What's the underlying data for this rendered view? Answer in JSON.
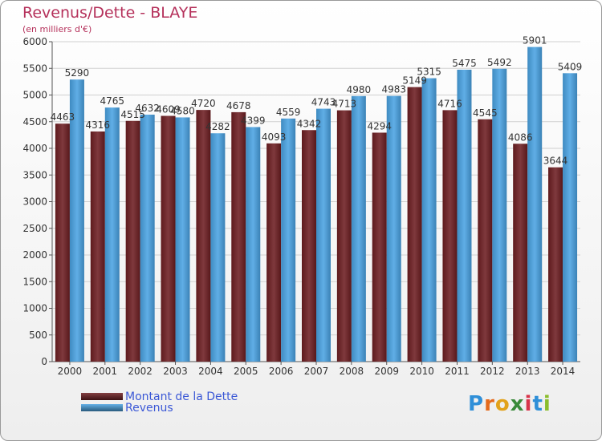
{
  "title": "Revenus/Dette - BLAYE",
  "subtitle": "(en milliers d'€)",
  "brand": {
    "text": "Proxiti",
    "letters": [
      "P",
      "r",
      "o",
      "x",
      "i",
      "t",
      "i"
    ],
    "colors": [
      "#2f8fd8",
      "#e46a1c",
      "#e2a21b",
      "#3a8a3a",
      "#d8344a",
      "#2f8fd8",
      "#8bbd2c"
    ]
  },
  "legend": [
    {
      "label": "Montant de la Dette",
      "color": "#6e1e22"
    },
    {
      "label": "Revenus",
      "color": "#4aa3e3"
    }
  ],
  "chart_data": {
    "type": "bar",
    "title": "Revenus/Dette - BLAYE",
    "subtitle": "(en milliers d'€)",
    "categories": [
      "2000",
      "2001",
      "2002",
      "2003",
      "2004",
      "2005",
      "2006",
      "2007",
      "2008",
      "2009",
      "2010",
      "2011",
      "2012",
      "2013",
      "2014"
    ],
    "series": [
      {
        "name": "Montant de la Dette",
        "color": "#6e1e22",
        "values": [
          4463,
          4316,
          4515,
          4609,
          4720,
          4678,
          4093,
          4342,
          4713,
          4294,
          5149,
          4716,
          4545,
          4086,
          3644
        ]
      },
      {
        "name": "Revenus",
        "color": "#4aa3e3",
        "values": [
          5290,
          4765,
          4632,
          4580,
          4282,
          4399,
          4559,
          4743,
          4980,
          4983,
          5315,
          5475,
          5492,
          5901,
          5409
        ]
      }
    ],
    "yticks": [
      "0",
      "500",
      "1000",
      "1500",
      "2000",
      "2500",
      "3000",
      "3500",
      "4000",
      "4500",
      "5000",
      "5500",
      "6000"
    ],
    "ylim": [
      0,
      6000
    ],
    "grid": true,
    "legend_position": "bottom-left"
  }
}
